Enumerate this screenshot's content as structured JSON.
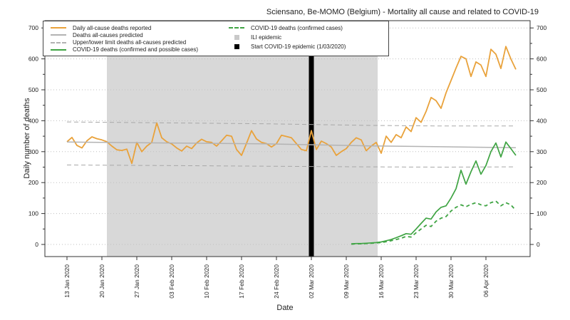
{
  "title": "Sciensano, Be-MOMO (Belgium) - Mortality all cause and related to COVID-19",
  "axes": {
    "y_label": "Daily number of deaths",
    "x_label": "Date",
    "ylim": [
      0,
      700
    ],
    "y_ticks": [
      0,
      100,
      200,
      300,
      400,
      500,
      600,
      700
    ],
    "y_minor_step": 50,
    "x_tick_labels": [
      "13 Jan 2020",
      "20 Jan 2020",
      "27 Jan 2020",
      "03 Feb 2020",
      "10 Feb 2020",
      "17 Feb 2020",
      "24 Feb 2020",
      "02 Mar 2020",
      "09 Mar 2020",
      "16 Mar 2020",
      "23 Mar 2020",
      "30 Mar 2020",
      "06 Apr 2020"
    ],
    "x_tick_days": [
      0,
      7,
      14,
      21,
      28,
      35,
      42,
      49,
      56,
      63,
      70,
      77,
      84
    ],
    "grid": "dotted horizontal at each 100"
  },
  "legend": {
    "left_items": [
      {
        "label": "Daily all-cause deaths reported",
        "swatch": "line",
        "color": "#E9A23B",
        "dash": false
      },
      {
        "label": "Deaths all-causes predicted",
        "swatch": "line",
        "color": "#b3b3b3",
        "dash": false
      },
      {
        "label": "Upper/lower limit deaths all-causes predicted",
        "swatch": "line",
        "color": "#b3b3b3",
        "dash": true
      },
      {
        "label": "COVID-19 deaths (confirmed and possible cases)",
        "swatch": "line",
        "color": "#3FA443",
        "dash": false
      }
    ],
    "right_items": [
      {
        "label": "COVID-19 deaths (confirmed cases)",
        "swatch": "line",
        "color": "#3FA443",
        "dash": true
      },
      {
        "label": "ILI epidemic",
        "swatch": "square",
        "color": "#c9c9c9"
      },
      {
        "label": "Start COVID-19 epidemic (1/03/2020)",
        "swatch": "square",
        "color": "#000000"
      }
    ]
  },
  "chart_data": {
    "type": "line",
    "title": "Sciensano, Be-MOMO (Belgium) - Mortality all cause and related to COVID-19",
    "xlabel": "Date",
    "ylabel": "Daily number of deaths",
    "ylim": [
      0,
      700
    ],
    "x_unit": "days since 13 Jan 2020 (through 12 Apr 2020)",
    "series": [
      {
        "name": "Daily all-cause deaths reported",
        "color": "#E9A23B",
        "dash": null,
        "width": 1.8,
        "start_day": 0,
        "values": [
          332,
          346,
          320,
          312,
          335,
          348,
          342,
          338,
          332,
          318,
          306,
          304,
          308,
          262,
          330,
          300,
          318,
          330,
          393,
          345,
          332,
          325,
          312,
          302,
          318,
          310,
          328,
          340,
          332,
          330,
          318,
          335,
          353,
          350,
          307,
          288,
          327,
          368,
          341,
          330,
          326,
          315,
          326,
          353,
          349,
          345,
          326,
          307,
          303,
          368,
          307,
          334,
          326,
          315,
          288,
          300,
          310,
          330,
          345,
          338,
          303,
          318,
          330,
          295,
          350,
          330,
          355,
          345,
          380,
          365,
          410,
          395,
          430,
          475,
          465,
          440,
          490,
          530,
          570,
          608,
          600,
          543,
          590,
          580,
          543,
          631,
          615,
          569,
          640,
          600,
          566
        ]
      },
      {
        "name": "Deaths all-causes predicted",
        "color": "#b3b3b3",
        "dash": null,
        "width": 1.5,
        "points": [
          [
            0,
            331
          ],
          [
            20,
            328
          ],
          [
            40,
            325
          ],
          [
            60,
            319
          ],
          [
            75,
            316
          ],
          [
            90,
            313
          ]
        ]
      },
      {
        "name": "Upper limit deaths all-causes predicted",
        "color": "#a8a8a8",
        "dash": "6,4",
        "width": 1,
        "points": [
          [
            0,
            396
          ],
          [
            20,
            393
          ],
          [
            40,
            390
          ],
          [
            60,
            385
          ],
          [
            75,
            383
          ],
          [
            90,
            383
          ]
        ]
      },
      {
        "name": "Lower limit deaths all-causes predicted",
        "color": "#a8a8a8",
        "dash": "6,4",
        "width": 1,
        "points": [
          [
            0,
            257
          ],
          [
            20,
            255
          ],
          [
            40,
            253
          ],
          [
            60,
            251
          ],
          [
            75,
            250
          ],
          [
            90,
            251
          ]
        ]
      },
      {
        "name": "COVID-19 deaths (confirmed and possible cases)",
        "color": "#3FA443",
        "dash": null,
        "width": 1.7,
        "start_day": 57,
        "values": [
          2,
          3,
          3,
          4,
          5,
          6,
          8,
          12,
          16,
          22,
          28,
          35,
          33,
          50,
          68,
          85,
          82,
          105,
          120,
          125,
          150,
          180,
          240,
          195,
          235,
          270,
          227,
          255,
          300,
          328,
          283,
          331,
          310,
          288
        ]
      },
      {
        "name": "COVID-19 deaths (confirmed cases)",
        "color": "#3FA443",
        "dash": "5,4",
        "width": 1.8,
        "start_day": 57,
        "values": [
          1,
          2,
          2,
          3,
          4,
          5,
          6,
          9,
          12,
          16,
          20,
          26,
          24,
          38,
          50,
          62,
          58,
          75,
          85,
          90,
          108,
          120,
          128,
          122,
          130,
          135,
          128,
          125,
          135,
          140,
          125,
          135,
          128,
          110
        ]
      }
    ],
    "annotations": {
      "ili_epidemic_region": {
        "label": "ILI epidemic",
        "from_day": 8,
        "to_day": 62.3,
        "from_date": "21 Jan 2020",
        "to_date": "15 Mar 2020",
        "color": "#d8d8d8"
      },
      "start_covid_epidemic": {
        "label": "Start COVID-19 epidemic",
        "date": "1/03/2020",
        "day": 49,
        "color": "#000000"
      }
    },
    "legend_position": "top-left inside plot, two columns"
  }
}
